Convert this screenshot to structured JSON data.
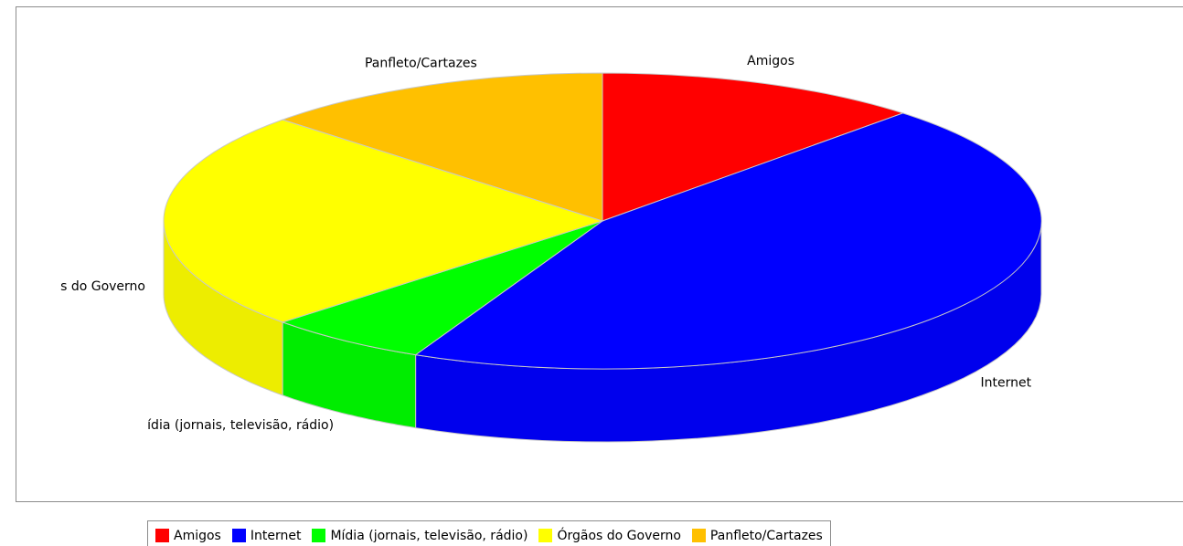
{
  "chart_data": {
    "type": "pie",
    "style": "3d",
    "categories": [
      "Amigos",
      "Internet",
      "Mídia (jornais, televisão, rádio)",
      "Órgãos do Governo",
      "Panfleto/Cartazes"
    ],
    "values": [
      12.0,
      45.0,
      6.0,
      24.0,
      13.0
    ],
    "value_unit": "percent",
    "colors": [
      "#ff0000",
      "#0000ff",
      "#00ff00",
      "#ffff00",
      "#ffc000"
    ],
    "slice_labels": [
      "Amigos",
      "Internet",
      "ídia (jornais, televisão, rádio)",
      "s do Governo",
      "Panfleto/Cartazes"
    ],
    "legend_position": "bottom",
    "legend": [
      "Amigos",
      "Internet",
      "Mídia (jornais, televisão, rádio)",
      "Órgãos do Governo",
      "Panfleto/Cartazes"
    ]
  }
}
